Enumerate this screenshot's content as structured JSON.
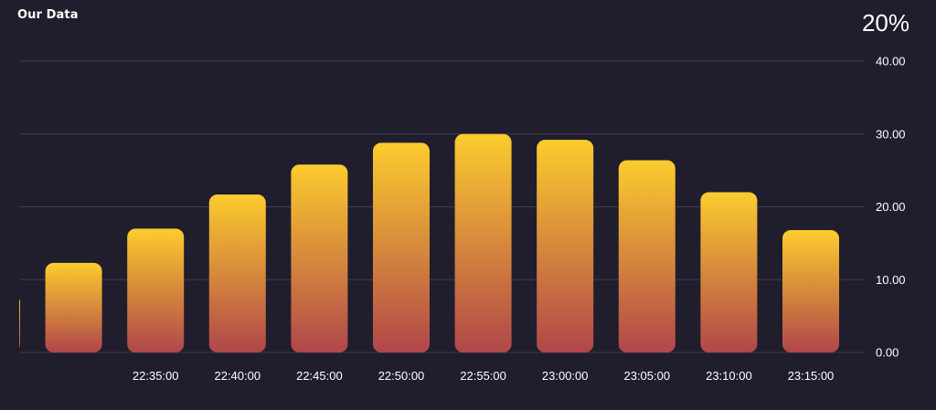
{
  "chart_data": {
    "type": "bar",
    "title": "Our Data",
    "stat": "20%",
    "colors": {
      "background": "#201e2c",
      "grid": "#3c3a52",
      "bar_top": "#fccc2e",
      "bar_bottom": "#b0464a"
    },
    "ylim": [
      0,
      40
    ],
    "yticks": [
      "0.00",
      "10.00",
      "20.00",
      "30.00",
      "40.00"
    ],
    "y_axis_side": "right",
    "grid": true,
    "categories": [
      "",
      "",
      "22:35:00",
      "22:40:00",
      "22:45:00",
      "22:50:00",
      "22:55:00",
      "23:00:00",
      "23:05:00",
      "23:10:00",
      "23:15:00"
    ],
    "values": [
      8,
      12.3,
      17,
      21.7,
      25.8,
      28.8,
      30,
      29.2,
      26.4,
      22,
      16.8
    ],
    "first_bar_clipped": true
  }
}
